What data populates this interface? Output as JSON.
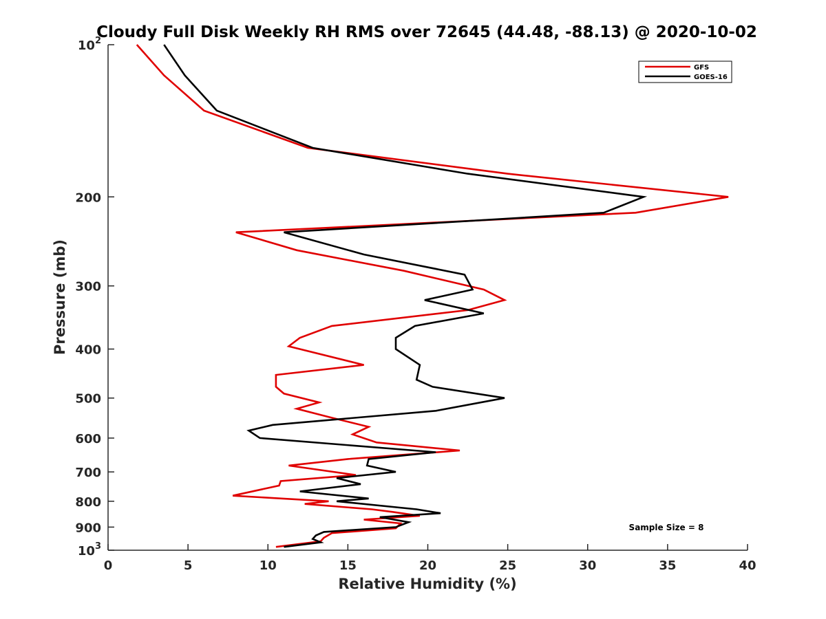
{
  "chart_data": {
    "type": "line",
    "title": "Cloudy Full Disk Weekly RH RMS over 72645 (44.48, -88.13) @ 2020-10-02",
    "xlabel": "Relative Humidity (%)",
    "ylabel": "Pressure (mb)",
    "xlim": [
      0,
      40
    ],
    "ylim": [
      100,
      1000
    ],
    "y_scale": "log",
    "y_reversed": true,
    "x_ticks": [
      "0",
      "5",
      "10",
      "15",
      "20",
      "25",
      "30",
      "35",
      "40"
    ],
    "y_ticks": [
      {
        "value": 100,
        "label": "10",
        "sup": "2"
      },
      {
        "value": 200,
        "label": "200"
      },
      {
        "value": 300,
        "label": "300"
      },
      {
        "value": 400,
        "label": "400"
      },
      {
        "value": 500,
        "label": "500"
      },
      {
        "value": 600,
        "label": "600"
      },
      {
        "value": 700,
        "label": "700"
      },
      {
        "value": 800,
        "label": "800"
      },
      {
        "value": 900,
        "label": "900"
      },
      {
        "value": 1000,
        "label": "10",
        "sup": "3"
      }
    ],
    "grid": false,
    "legend_position": "top-right",
    "annotation": "Sample Size = 8",
    "series": [
      {
        "name": "GFS",
        "color": "#e00000",
        "points": [
          [
            1.8,
            100
          ],
          [
            3.5,
            115
          ],
          [
            6.0,
            135
          ],
          [
            12.5,
            160
          ],
          [
            25.0,
            180
          ],
          [
            38.8,
            200
          ],
          [
            33.0,
            215
          ],
          [
            8.0,
            235
          ],
          [
            11.8,
            255
          ],
          [
            18.5,
            280
          ],
          [
            23.5,
            305
          ],
          [
            24.8,
            320
          ],
          [
            22.5,
            335
          ],
          [
            14.0,
            360
          ],
          [
            12.0,
            380
          ],
          [
            11.3,
            395
          ],
          [
            16.0,
            430
          ],
          [
            10.5,
            450
          ],
          [
            10.5,
            475
          ],
          [
            11.0,
            490
          ],
          [
            13.2,
            510
          ],
          [
            11.8,
            525
          ],
          [
            13.8,
            545
          ],
          [
            16.3,
            570
          ],
          [
            15.3,
            590
          ],
          [
            16.8,
            612
          ],
          [
            22.0,
            635
          ],
          [
            15.0,
            660
          ],
          [
            11.3,
            680
          ],
          [
            15.5,
            710
          ],
          [
            10.8,
            730
          ],
          [
            10.7,
            745
          ],
          [
            7.8,
            780
          ],
          [
            13.8,
            800
          ],
          [
            12.3,
            810
          ],
          [
            16.5,
            830
          ],
          [
            17.8,
            840
          ],
          [
            19.5,
            855
          ],
          [
            16.0,
            870
          ],
          [
            18.3,
            885
          ],
          [
            18.0,
            905
          ],
          [
            14.0,
            925
          ],
          [
            13.5,
            945
          ],
          [
            13.3,
            960
          ],
          [
            10.5,
            985
          ]
        ]
      },
      {
        "name": "GOES-16",
        "color": "#000000",
        "points": [
          [
            3.5,
            100
          ],
          [
            4.8,
            115
          ],
          [
            6.8,
            135
          ],
          [
            12.8,
            160
          ],
          [
            22.5,
            180
          ],
          [
            33.5,
            200
          ],
          [
            31.0,
            215
          ],
          [
            11.0,
            235
          ],
          [
            16.0,
            260
          ],
          [
            22.3,
            285
          ],
          [
            22.8,
            305
          ],
          [
            19.8,
            320
          ],
          [
            23.5,
            340
          ],
          [
            19.2,
            360
          ],
          [
            18.0,
            380
          ],
          [
            18.0,
            400
          ],
          [
            19.5,
            430
          ],
          [
            19.3,
            460
          ],
          [
            20.3,
            475
          ],
          [
            24.8,
            500
          ],
          [
            20.5,
            530
          ],
          [
            10.3,
            565
          ],
          [
            8.8,
            580
          ],
          [
            9.5,
            600
          ],
          [
            20.5,
            640
          ],
          [
            16.3,
            660
          ],
          [
            16.2,
            680
          ],
          [
            18.0,
            700
          ],
          [
            14.3,
            720
          ],
          [
            15.8,
            740
          ],
          [
            12.0,
            765
          ],
          [
            16.3,
            790
          ],
          [
            14.3,
            800
          ],
          [
            19.3,
            830
          ],
          [
            20.8,
            845
          ],
          [
            17.0,
            860
          ],
          [
            18.8,
            880
          ],
          [
            18.0,
            900
          ],
          [
            13.5,
            920
          ],
          [
            13.0,
            935
          ],
          [
            12.8,
            950
          ],
          [
            13.3,
            965
          ],
          [
            11.0,
            985
          ]
        ]
      }
    ]
  }
}
